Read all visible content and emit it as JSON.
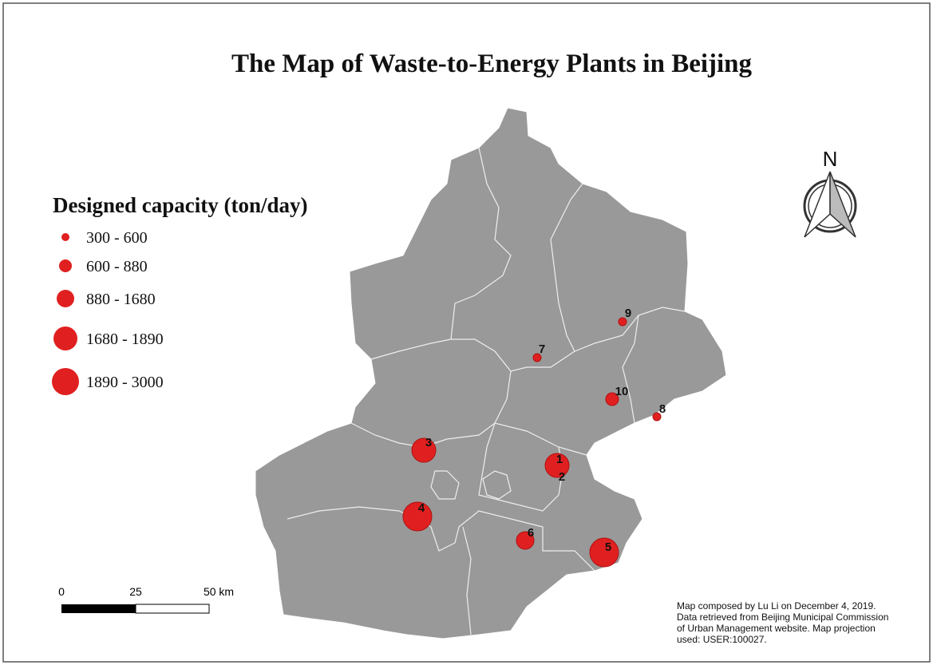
{
  "title": "The Map of Waste-to-Energy Plants in Beijing",
  "legend": {
    "title": "Designed capacity (ton/day)",
    "classes": [
      "300 - 600",
      "600 - 880",
      "880 - 1680",
      "1680 - 1890",
      "1890 - 3000"
    ]
  },
  "plants": [
    {
      "label": "1"
    },
    {
      "label": "2"
    },
    {
      "label": "3"
    },
    {
      "label": "4"
    },
    {
      "label": "5"
    },
    {
      "label": "6"
    },
    {
      "label": "7"
    },
    {
      "label": "8"
    },
    {
      "label": "9"
    },
    {
      "label": "10"
    }
  ],
  "north_arrow": "N",
  "scale_bar": [
    "0",
    "25",
    "50 km"
  ],
  "note": [
    "Map composed by Lu Li on December 4, 2019.",
    "Data retrieved from Beijing Municipal Commission",
    "of Urban Management website. Map projection",
    "used: USER:100027."
  ]
}
